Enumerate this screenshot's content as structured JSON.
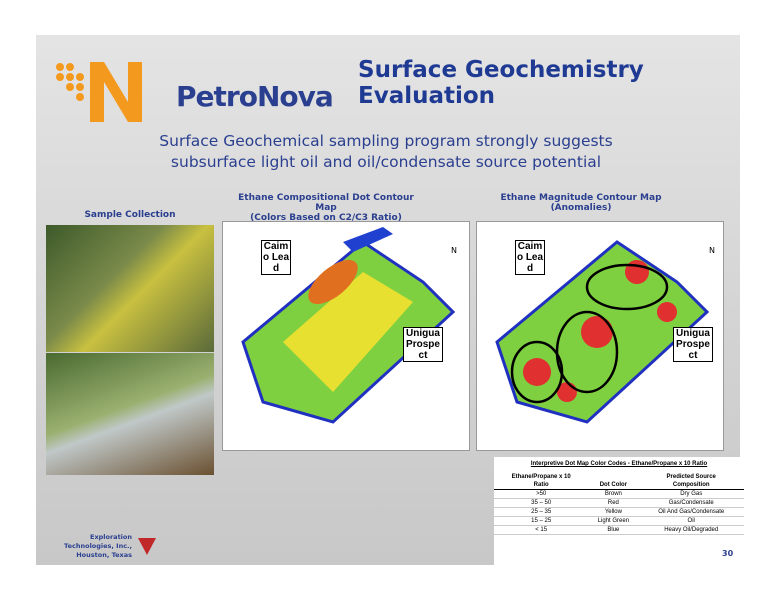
{
  "header": {
    "logo": "PetroNova",
    "title": "Surface Geochemistry Evaluation"
  },
  "subtitle": "Surface Geochemical sampling program strongly suggests subsurface light oil and oil/condensate source potential",
  "photos": {
    "caption": "Sample Collection"
  },
  "maps": [
    {
      "title": "Ethane Compositional Dot Contour Map",
      "subtitle": "(Colors Based on C2/C3 Ratio)",
      "lead": "Caimo Lead",
      "prospect": "Unigua Prospect",
      "north": "N"
    },
    {
      "title": "Ethane Magnitude Contour Map",
      "subtitle": "(Anomalies)",
      "lead": "Caimo Lead",
      "prospect": "Unigua Prospect",
      "north": "N"
    }
  ],
  "table": {
    "title": "Interpretive Dot Map Color Codes - Ethane/Propane x 10 Ratio",
    "header": [
      [
        "Ethane/Propane x 10",
        "Ratio"
      ],
      [
        "",
        "Dot Color"
      ],
      [
        "Predicted Source",
        "Composition"
      ]
    ],
    "rows": [
      [
        ">50",
        "Brown",
        "Dry Gas"
      ],
      [
        "35 – 50",
        "Red",
        "Gas/Condensate"
      ],
      [
        "25 – 35",
        "Yellow",
        "Oil And Gas/Condensate"
      ],
      [
        "15 – 25",
        "Light Green",
        "Oil"
      ],
      [
        "< 15",
        "Blue",
        "Heavy Oil/Degraded"
      ]
    ]
  },
  "footer": {
    "company": "Exploration Technologies, Inc.,",
    "location": "Houston, Texas",
    "page": "30"
  }
}
